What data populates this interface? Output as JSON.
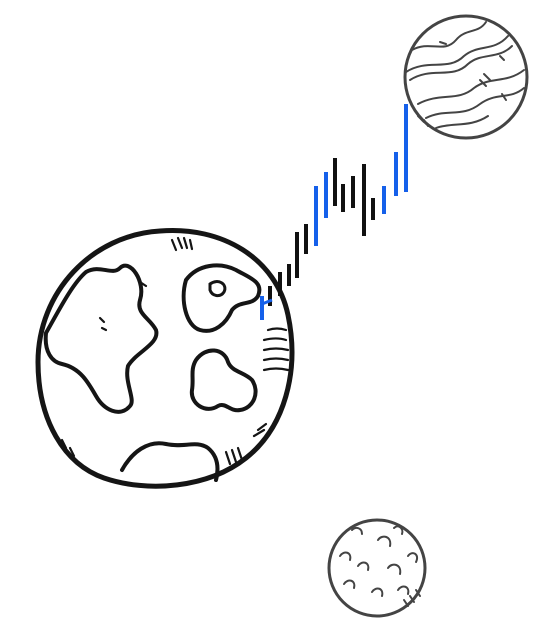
{
  "illustration": {
    "objects": [
      "earth-planet",
      "gas-giant-planet",
      "moon",
      "candlestick-price-bars"
    ],
    "colors": {
      "background": "#ffffff",
      "ink": "#1a1a1a",
      "bar_up": "#1560ea",
      "bar_down": "#111111"
    },
    "candles": [
      {
        "color": "up"
      },
      {
        "color": "down"
      },
      {
        "color": "up"
      },
      {
        "color": "down"
      },
      {
        "color": "down"
      },
      {
        "color": "down"
      },
      {
        "color": "down"
      },
      {
        "color": "up"
      },
      {
        "color": "down"
      },
      {
        "color": "up"
      },
      {
        "color": "down"
      },
      {
        "color": "down"
      },
      {
        "color": "down"
      },
      {
        "color": "down"
      },
      {
        "color": "down"
      },
      {
        "color": "up"
      },
      {
        "color": "up"
      },
      {
        "color": "up"
      }
    ]
  }
}
